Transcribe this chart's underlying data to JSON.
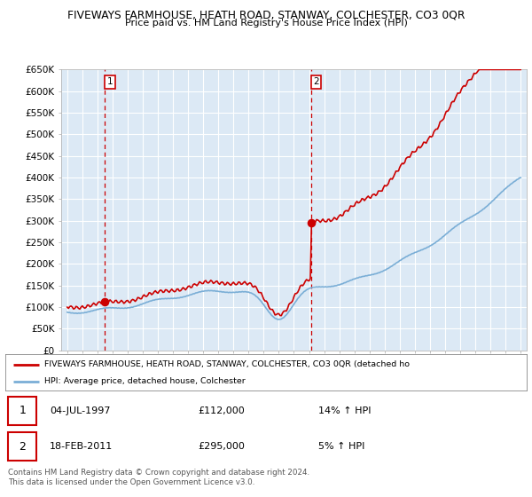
{
  "title1": "FIVEWAYS FARMHOUSE, HEATH ROAD, STANWAY, COLCHESTER, CO3 0QR",
  "title2": "Price paid vs. HM Land Registry's House Price Index (HPI)",
  "bg_color": "#dce9f5",
  "grid_color": "#ffffff",
  "line_color_red": "#cc0000",
  "line_color_blue": "#7aaed6",
  "ylim": [
    0,
    650000
  ],
  "yticks": [
    0,
    50000,
    100000,
    150000,
    200000,
    250000,
    300000,
    350000,
    400000,
    450000,
    500000,
    550000,
    600000,
    650000
  ],
  "sale1_year": 1997.5,
  "sale1_price": 112000,
  "sale2_year": 2011.12,
  "sale2_price": 295000,
  "legend_label1": "FIVEWAYS FARMHOUSE, HEATH ROAD, STANWAY, COLCHESTER, CO3 0QR (detached ho",
  "legend_label2": "HPI: Average price, detached house, Colchester",
  "table_row1": [
    "1",
    "04-JUL-1997",
    "£112,000",
    "14% ↑ HPI"
  ],
  "table_row2": [
    "2",
    "18-FEB-2011",
    "£295,000",
    "5% ↑ HPI"
  ],
  "footer": "Contains HM Land Registry data © Crown copyright and database right 2024.\nThis data is licensed under the Open Government Licence v3.0.",
  "xmin": 1994.6,
  "xmax": 2025.4
}
